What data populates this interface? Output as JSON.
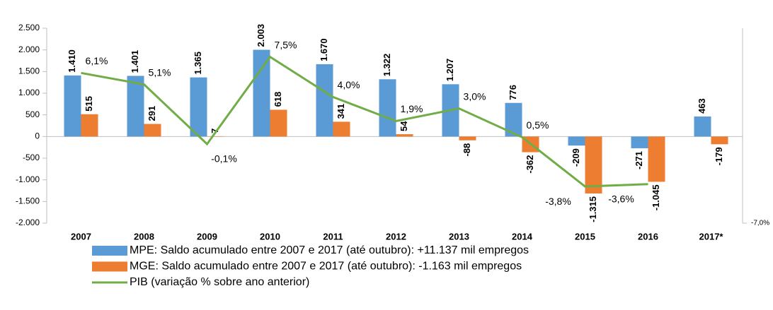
{
  "chart_data": {
    "type": "bar",
    "categories": [
      "2007",
      "2008",
      "2009",
      "2010",
      "2011",
      "2012",
      "2013",
      "2014",
      "2015",
      "2016",
      "2017*"
    ],
    "series": [
      {
        "name": "MPE: Saldo acumulado entre 2007 e 2017 (até outubro): +11.137 mil empregos",
        "color": "#5b9bd5",
        "type": "bar",
        "values": [
          1410,
          1401,
          1365,
          2003,
          1670,
          1322,
          1207,
          776,
          -209,
          -271,
          463
        ],
        "value_labels": [
          "1.410",
          "1.401",
          "1.365",
          "2.003",
          "1.670",
          "1.322",
          "1.207",
          "776",
          "-209",
          "-271",
          "463"
        ]
      },
      {
        "name": "MGE: Saldo acumulado entre 2007 e 2017 (até outubro): -1.163 mil empregos",
        "color": "#ed7d31",
        "type": "bar",
        "values": [
          515,
          291,
          7,
          618,
          341,
          54,
          -88,
          -362,
          -1315,
          -1045,
          -179
        ],
        "value_labels": [
          "515",
          "291",
          "7",
          "618",
          "341",
          "54",
          "-88",
          "-362",
          "-1.315",
          "-1.045",
          "-179"
        ]
      },
      {
        "name": "PIB (variação % sobre ano anterior)",
        "color": "#70ad47",
        "type": "line",
        "axis": "y2",
        "values": [
          6.1,
          5.1,
          -0.1,
          7.5,
          4.0,
          1.9,
          3.0,
          0.5,
          -3.8,
          -3.6,
          null
        ],
        "value_labels": [
          "6,1%",
          "5,1%",
          "-0,1%",
          "7,5%",
          "4,0%",
          "1,9%",
          "3,0%",
          "0,5%",
          "-3,8%",
          "-3,6%",
          null
        ]
      }
    ],
    "ylim": [
      -2000,
      2500
    ],
    "yticks": [
      {
        "value": -2000,
        "label": "-2.000"
      },
      {
        "value": -1500,
        "label": "-1.500"
      },
      {
        "value": -1000,
        "label": "-1.000"
      },
      {
        "value": -500,
        "label": "-500"
      },
      0,
      500,
      {
        "value": 1000,
        "label": "1.000"
      },
      {
        "value": 1500,
        "label": "1.500"
      },
      {
        "value": 2000,
        "label": "2.000"
      },
      {
        "value": 2500,
        "label": "2.500"
      }
    ],
    "y2lim": [
      -7,
      10
    ],
    "y2ticks": [
      {
        "value": -7,
        "label": "-7,0%"
      }
    ],
    "negative_label_color": "#ff0000"
  }
}
